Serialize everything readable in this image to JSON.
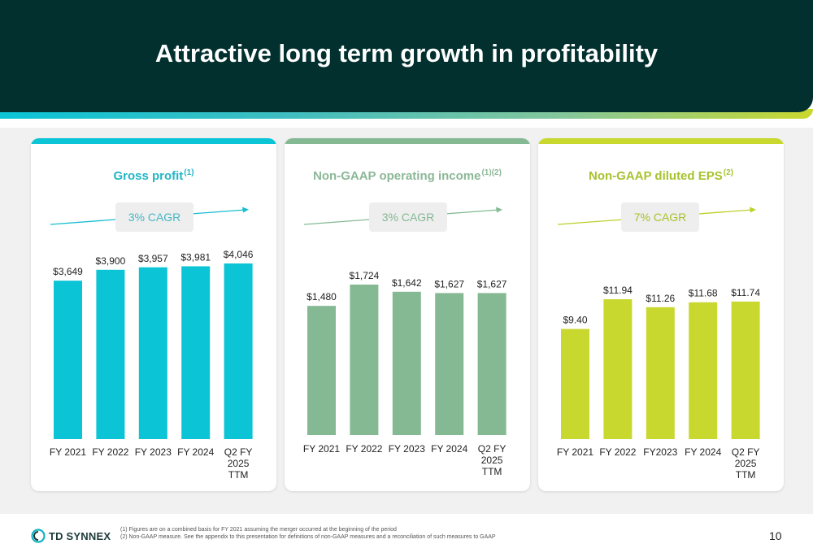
{
  "slide": {
    "title": "Attractive long term growth in profitability",
    "page_number": "10"
  },
  "footer": {
    "logo_text": "TD SYNNEX",
    "footnotes": [
      "(1) Figures are on a combined basis for FY 2021 assuming the merger occurred at the beginning of the period",
      "(2) Non-GAAP measure. See the appendix to this presentation for definitions of non-GAAP measures and a reconciliation of such measures to GAAP"
    ]
  },
  "panels": [
    {
      "title": "Gross profit",
      "sup": "(1)",
      "cagr": "3% CAGR",
      "accent": "#0bc4d6",
      "title_color": "#22b6c7"
    },
    {
      "title": "Non-GAAP operating income",
      "sup": "(1)(2)",
      "cagr": "3% CAGR",
      "accent": "#84b994",
      "title_color": "#8cb897"
    },
    {
      "title": "Non-GAAP diluted EPS",
      "sup": "(2)",
      "cagr": "7% CAGR",
      "accent": "#c9d82e",
      "title_color": "#a7c22f"
    }
  ],
  "chart_data": [
    {
      "type": "bar",
      "title": "Gross profit",
      "categories": [
        "FY 2021",
        "FY 2022",
        "FY 2023",
        "FY 2024",
        "Q2 FY 2025 TTM"
      ],
      "values": [
        3649,
        3900,
        3957,
        3981,
        4046
      ],
      "data_labels": [
        "$3,649",
        "$3,900",
        "$3,957",
        "$3,981",
        "$4,046"
      ],
      "annotation": "3% CAGR",
      "color": "#0bc4d6"
    },
    {
      "type": "bar",
      "title": "Non-GAAP operating income",
      "categories": [
        "FY 2021",
        "FY 2022",
        "FY 2023",
        "FY 2024",
        "Q2 FY 2025 TTM"
      ],
      "values": [
        1480,
        1724,
        1642,
        1627,
        1627
      ],
      "data_labels": [
        "$1,480",
        "$1,724",
        "$1,642",
        "$1,627",
        "$1,627"
      ],
      "annotation": "3% CAGR",
      "color": "#84b994"
    },
    {
      "type": "bar",
      "title": "Non-GAAP diluted EPS",
      "categories": [
        "FY 2021",
        "FY 2022",
        "FY2023",
        "FY 2024",
        "Q2 FY 2025 TTM"
      ],
      "values": [
        9.4,
        11.94,
        11.26,
        11.68,
        11.74
      ],
      "data_labels": [
        "$9.40",
        "$11.94",
        "$11.26",
        "$11.68",
        "$11.74"
      ],
      "annotation": "7% CAGR",
      "color": "#c9d82e"
    }
  ]
}
